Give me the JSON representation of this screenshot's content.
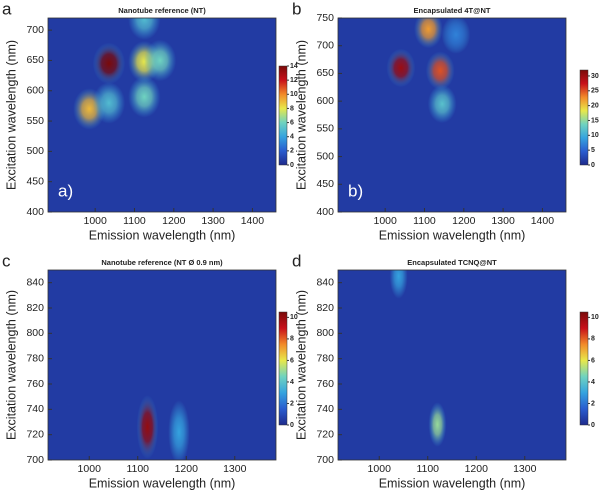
{
  "chart_data": [
    {
      "type": "heatmap",
      "panel_label": "a",
      "inset_label": "a)",
      "title": "Nanotube reference (NT)",
      "x_label": "Emission wavelength (nm)",
      "y_label": "Excitation wavelength (nm)",
      "xlim": [
        880,
        1460
      ],
      "ylim": [
        400,
        720
      ],
      "xticks": [
        1000,
        1100,
        1200,
        1300,
        1400
      ],
      "yticks": [
        400,
        450,
        500,
        550,
        600,
        650,
        700
      ],
      "clim": [
        0,
        14
      ],
      "cticks": [
        0,
        2,
        4,
        6,
        8,
        10,
        12,
        14
      ],
      "colorscale": [
        "#1e2a8c",
        "#2a5ccf",
        "#35a3df",
        "#6fd3c0",
        "#e8e84a",
        "#f28a2a",
        "#c8101a",
        "#7a0a0a"
      ],
      "peaks": [
        {
          "x": 985,
          "y": 570,
          "intensity": 9
        },
        {
          "x": 1035,
          "y": 645,
          "intensity": 14
        },
        {
          "x": 1035,
          "y": 580,
          "intensity": 5
        },
        {
          "x": 1125,
          "y": 648,
          "intensity": 8
        },
        {
          "x": 1165,
          "y": 650,
          "intensity": 6
        },
        {
          "x": 1125,
          "y": 590,
          "intensity": 6
        },
        {
          "x": 1125,
          "y": 718,
          "intensity": 5
        }
      ]
    },
    {
      "type": "heatmap",
      "panel_label": "b",
      "inset_label": "b)",
      "title": "Encapsulated 4T@NT",
      "x_label": "Emission wavelength (nm)",
      "y_label": "Excitation wavelength (nm)",
      "xlim": [
        880,
        1460
      ],
      "ylim": [
        400,
        750
      ],
      "xticks": [
        1000,
        1100,
        1200,
        1300,
        1400
      ],
      "yticks": [
        400,
        450,
        500,
        550,
        600,
        650,
        700,
        750
      ],
      "clim": [
        0,
        32
      ],
      "cticks": [
        0,
        5,
        10,
        15,
        20,
        25,
        30
      ],
      "colorscale": [
        "#1e2a8c",
        "#2a5ccf",
        "#35a3df",
        "#6fd3c0",
        "#e8e84a",
        "#f28a2a",
        "#c8101a",
        "#7a0a0a"
      ],
      "peaks": [
        {
          "x": 1040,
          "y": 660,
          "intensity": 30
        },
        {
          "x": 1110,
          "y": 730,
          "intensity": 22
        },
        {
          "x": 1140,
          "y": 655,
          "intensity": 25
        },
        {
          "x": 1145,
          "y": 595,
          "intensity": 12
        },
        {
          "x": 1180,
          "y": 720,
          "intensity": 7
        }
      ]
    },
    {
      "type": "heatmap",
      "panel_label": "c",
      "title": "Nanotube reference (NT Ø 0.9 nm)",
      "x_label": "Emission wavelength (nm)",
      "y_label": "Excitation wavelength (nm)",
      "xlim": [
        915,
        1385
      ],
      "ylim": [
        700,
        850
      ],
      "xticks": [
        1000,
        1100,
        1200,
        1300
      ],
      "yticks": [
        700,
        720,
        740,
        760,
        780,
        800,
        820,
        840
      ],
      "clim": [
        0,
        10.5
      ],
      "cticks": [
        0,
        2,
        4,
        6,
        8,
        10
      ],
      "colorscale": [
        "#1e2a8c",
        "#2a5ccf",
        "#35a3df",
        "#6fd3c0",
        "#e8e84a",
        "#f28a2a",
        "#c8101a",
        "#7a0a0a"
      ],
      "peaks": [
        {
          "x": 1120,
          "y": 726,
          "intensity": 10
        },
        {
          "x": 1185,
          "y": 722,
          "intensity": 3
        }
      ]
    },
    {
      "type": "heatmap",
      "panel_label": "d",
      "title": "Encapsulated TCNQ@NT",
      "x_label": "Emission wavelength (nm)",
      "y_label": "Excitation wavelength (nm)",
      "xlim": [
        915,
        1385
      ],
      "ylim": [
        700,
        850
      ],
      "xticks": [
        1000,
        1100,
        1200,
        1300
      ],
      "yticks": [
        700,
        720,
        740,
        760,
        780,
        800,
        820,
        840
      ],
      "clim": [
        0,
        10.5
      ],
      "cticks": [
        0,
        2,
        4,
        6,
        8,
        10
      ],
      "colorscale": [
        "#1e2a8c",
        "#2a5ccf",
        "#35a3df",
        "#6fd3c0",
        "#e8e84a",
        "#f28a2a",
        "#c8101a",
        "#7a0a0a"
      ],
      "peaks": [
        {
          "x": 1120,
          "y": 728,
          "intensity": 5
        },
        {
          "x": 1040,
          "y": 845,
          "intensity": 3
        }
      ]
    }
  ]
}
